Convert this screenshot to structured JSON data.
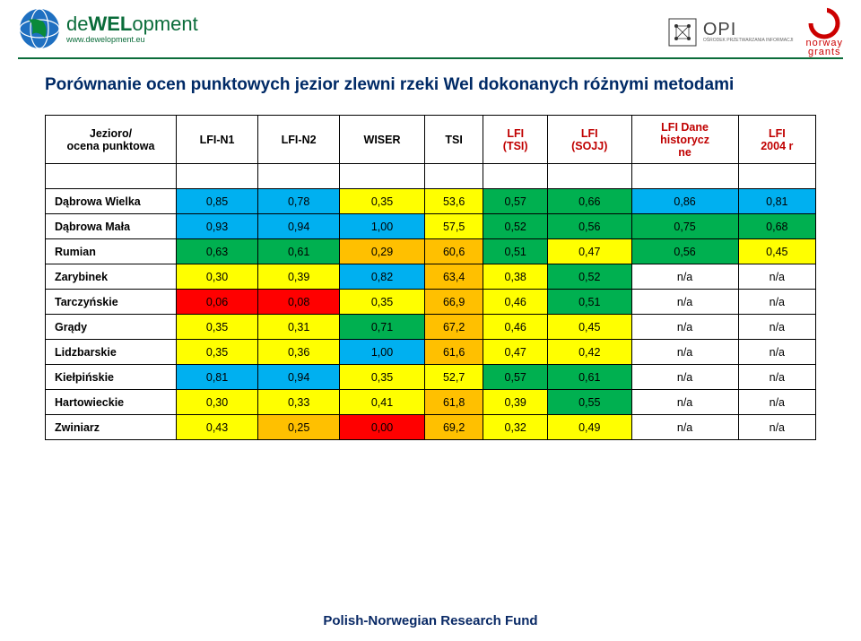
{
  "brand": {
    "prefix": "de",
    "mid": "WEL",
    "suffix": "opment",
    "url": "www.dewelopment.eu"
  },
  "logos": {
    "opi_big": "OPI",
    "opi_small": "OŚRODEK PRZETWARZANIA INFORMACJI",
    "norway1": "norway",
    "norway2": "grants"
  },
  "title": "Porównanie ocen punktowych jezior zlewni rzeki Wel dokonanych różnymi metodami",
  "columns": [
    {
      "label": "Jezioro/\nocena punktowa",
      "color": "#000000"
    },
    {
      "label": "LFI-N1",
      "color": "#000000"
    },
    {
      "label": "LFI-N2",
      "color": "#000000"
    },
    {
      "label": "WISER",
      "color": "#000000"
    },
    {
      "label": "TSI",
      "color": "#000000"
    },
    {
      "label": "LFI\n(TSI)",
      "color": "#c00000"
    },
    {
      "label": "LFI\n(SOJJ)",
      "color": "#c00000"
    },
    {
      "label": "LFI Dane\nhistorycz\nne",
      "color": "#c00000"
    },
    {
      "label": "LFI\n2004 r",
      "color": "#c00000"
    }
  ],
  "palette": {
    "blue": "#00b0f0",
    "green": "#00b050",
    "yellow": "#ffff00",
    "orange": "#ffc000",
    "red": "#ff0000",
    "white": "#ffffff",
    "none": "#ffffff"
  },
  "rows": [
    {
      "name": "Dąbrowa Wielka",
      "cells": [
        {
          "v": "0,85",
          "c": "blue"
        },
        {
          "v": "0,78",
          "c": "blue"
        },
        {
          "v": "0,35",
          "c": "yellow"
        },
        {
          "v": "53,6",
          "c": "yellow"
        },
        {
          "v": "0,57",
          "c": "green"
        },
        {
          "v": "0,66",
          "c": "green"
        },
        {
          "v": "0,86",
          "c": "blue"
        },
        {
          "v": "0,81",
          "c": "blue"
        }
      ]
    },
    {
      "name": "Dąbrowa Mała",
      "cells": [
        {
          "v": "0,93",
          "c": "blue"
        },
        {
          "v": "0,94",
          "c": "blue"
        },
        {
          "v": "1,00",
          "c": "blue"
        },
        {
          "v": "57,5",
          "c": "yellow"
        },
        {
          "v": "0,52",
          "c": "green"
        },
        {
          "v": "0,56",
          "c": "green"
        },
        {
          "v": "0,75",
          "c": "green"
        },
        {
          "v": "0,68",
          "c": "green"
        }
      ]
    },
    {
      "name": "Rumian",
      "cells": [
        {
          "v": "0,63",
          "c": "green"
        },
        {
          "v": "0,61",
          "c": "green"
        },
        {
          "v": "0,29",
          "c": "orange"
        },
        {
          "v": "60,6",
          "c": "orange"
        },
        {
          "v": "0,51",
          "c": "green"
        },
        {
          "v": "0,47",
          "c": "yellow"
        },
        {
          "v": "0,56",
          "c": "green"
        },
        {
          "v": "0,45",
          "c": "yellow"
        }
      ]
    },
    {
      "name": "Zarybinek",
      "cells": [
        {
          "v": "0,30",
          "c": "yellow"
        },
        {
          "v": "0,39",
          "c": "yellow"
        },
        {
          "v": "0,82",
          "c": "blue"
        },
        {
          "v": "63,4",
          "c": "orange"
        },
        {
          "v": "0,38",
          "c": "yellow"
        },
        {
          "v": "0,52",
          "c": "green"
        },
        {
          "v": "n/a",
          "c": "white"
        },
        {
          "v": "n/a",
          "c": "white"
        }
      ]
    },
    {
      "name": "Tarczyńskie",
      "cells": [
        {
          "v": "0,06",
          "c": "red"
        },
        {
          "v": "0,08",
          "c": "red"
        },
        {
          "v": "0,35",
          "c": "yellow"
        },
        {
          "v": "66,9",
          "c": "orange"
        },
        {
          "v": "0,46",
          "c": "yellow"
        },
        {
          "v": "0,51",
          "c": "green"
        },
        {
          "v": "n/a",
          "c": "white"
        },
        {
          "v": "n/a",
          "c": "white"
        }
      ]
    },
    {
      "name": "Grądy",
      "cells": [
        {
          "v": "0,35",
          "c": "yellow"
        },
        {
          "v": "0,31",
          "c": "yellow"
        },
        {
          "v": "0,71",
          "c": "green"
        },
        {
          "v": "67,2",
          "c": "orange"
        },
        {
          "v": "0,46",
          "c": "yellow"
        },
        {
          "v": "0,45",
          "c": "yellow"
        },
        {
          "v": "n/a",
          "c": "white"
        },
        {
          "v": "n/a",
          "c": "white"
        }
      ]
    },
    {
      "name": "Lidzbarskie",
      "cells": [
        {
          "v": "0,35",
          "c": "yellow"
        },
        {
          "v": "0,36",
          "c": "yellow"
        },
        {
          "v": "1,00",
          "c": "blue"
        },
        {
          "v": "61,6",
          "c": "orange"
        },
        {
          "v": "0,47",
          "c": "yellow"
        },
        {
          "v": "0,42",
          "c": "yellow"
        },
        {
          "v": "n/a",
          "c": "white"
        },
        {
          "v": "n/a",
          "c": "white"
        }
      ]
    },
    {
      "name": "Kiełpińskie",
      "cells": [
        {
          "v": "0,81",
          "c": "blue"
        },
        {
          "v": "0,94",
          "c": "blue"
        },
        {
          "v": "0,35",
          "c": "yellow"
        },
        {
          "v": "52,7",
          "c": "yellow"
        },
        {
          "v": "0,57",
          "c": "green"
        },
        {
          "v": "0,61",
          "c": "green"
        },
        {
          "v": "n/a",
          "c": "white"
        },
        {
          "v": "n/a",
          "c": "white"
        }
      ]
    },
    {
      "name": "Hartowieckie",
      "cells": [
        {
          "v": "0,30",
          "c": "yellow"
        },
        {
          "v": "0,33",
          "c": "yellow"
        },
        {
          "v": "0,41",
          "c": "yellow"
        },
        {
          "v": "61,8",
          "c": "orange"
        },
        {
          "v": "0,39",
          "c": "yellow"
        },
        {
          "v": "0,55",
          "c": "green"
        },
        {
          "v": "n/a",
          "c": "white"
        },
        {
          "v": "n/a",
          "c": "white"
        }
      ]
    },
    {
      "name": "Zwiniarz",
      "cells": [
        {
          "v": "0,43",
          "c": "yellow"
        },
        {
          "v": "0,25",
          "c": "orange"
        },
        {
          "v": "0,00",
          "c": "red"
        },
        {
          "v": "69,2",
          "c": "orange"
        },
        {
          "v": "0,32",
          "c": "yellow"
        },
        {
          "v": "0,49",
          "c": "yellow"
        },
        {
          "v": "n/a",
          "c": "white"
        },
        {
          "v": "n/a",
          "c": "white"
        }
      ]
    }
  ],
  "footer": "Polish-Norwegian Research Fund"
}
